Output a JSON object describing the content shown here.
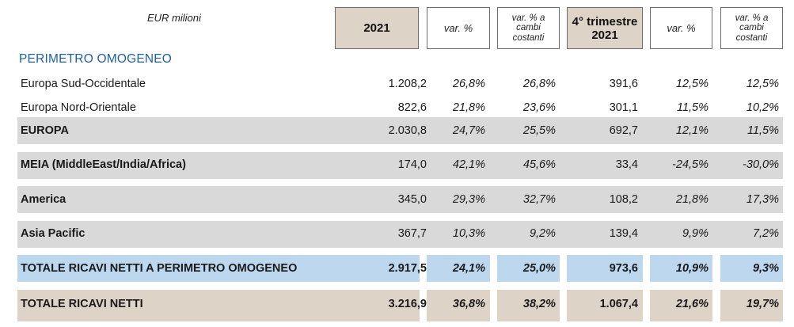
{
  "header": {
    "unit_label": "EUR milioni",
    "col_2021": "2021",
    "col_var": "var. %",
    "col_var_const_1": "var. % a",
    "col_var_const_2": "cambi",
    "col_var_const_3": "costanti",
    "col_q4_1": "4° trimestre",
    "col_q4_2": "2021",
    "col_var_q": "var. %",
    "col_var_const_q_1": "var. % a",
    "col_var_const_q_2": "cambi",
    "col_var_const_q_3": "costanti"
  },
  "section_title": "PERIMETRO OMOGENEO",
  "rows": [
    {
      "label": "Europa Sud-Occidentale",
      "v2021": "1.208,2",
      "var": "26,8%",
      "var_c": "26,8%",
      "q4": "391,6",
      "var_q": "12,5%",
      "var_qc": "12,5%"
    },
    {
      "label": "Europa Nord-Orientale",
      "v2021": "822,6",
      "var": "21,8%",
      "var_c": "23,6%",
      "q4": "301,1",
      "var_q": "11,5%",
      "var_qc": "10,2%"
    },
    {
      "label": "EUROPA",
      "v2021": "2.030,8",
      "var": "24,7%",
      "var_c": "25,5%",
      "q4": "692,7",
      "var_q": "12,1%",
      "var_qc": "11,5%"
    },
    {
      "label": "MEIA (MiddleEast/India/Africa)",
      "v2021": "174,0",
      "var": "42,1%",
      "var_c": "45,6%",
      "q4": "33,4",
      "var_q": "-24,5%",
      "var_qc": "-30,0%"
    },
    {
      "label": "America",
      "v2021": "345,0",
      "var": "29,3%",
      "var_c": "32,7%",
      "q4": "108,2",
      "var_q": "21,8%",
      "var_qc": "17,3%"
    },
    {
      "label": "Asia Pacific",
      "v2021": "367,7",
      "var": "10,3%",
      "var_c": "9,2%",
      "q4": "139,4",
      "var_q": "9,9%",
      "var_qc": "7,2%"
    },
    {
      "label": "TOTALE RICAVI NETTI A PERIMETRO OMOGENEO",
      "v2021": "2.917,5",
      "var": "24,1%",
      "var_c": "25,0%",
      "q4": "973,6",
      "var_q": "10,9%",
      "var_qc": "9,3%"
    },
    {
      "label": "TOTALE RICAVI NETTI",
      "v2021": "3.216,9",
      "var": "36,8%",
      "var_c": "38,2%",
      "q4": "1.067,4",
      "var_q": "21,6%",
      "var_qc": "19,7%"
    }
  ]
}
